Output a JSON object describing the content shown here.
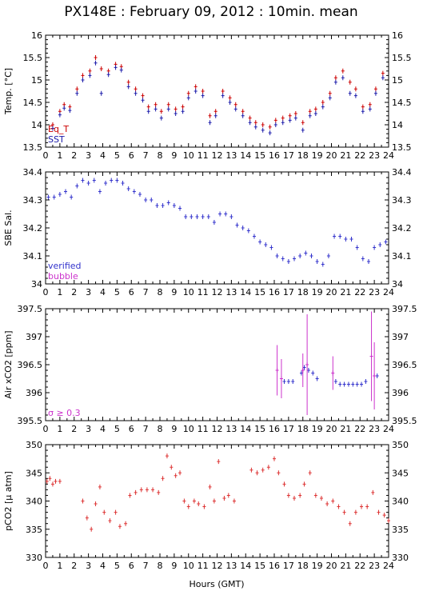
{
  "title": "PX148E : February 09, 2012 : 10min. mean",
  "xlabel": "Hours (GMT)",
  "colors": {
    "eq_t": "#cc0000",
    "sst": "#1a1aaa",
    "verified": "#3333cc",
    "bubble": "#cc33cc",
    "pco2": "#dd3333"
  },
  "chart_data": [
    {
      "type": "scatter",
      "ylabel": "Temp. [°C]",
      "xlim": [
        0,
        24
      ],
      "ylim": [
        13.5,
        16
      ],
      "yticks": [
        13.5,
        14,
        14.5,
        15,
        15.5,
        16
      ],
      "ytick_labels": [
        "13.5",
        "14",
        "14.5",
        "15",
        "15.5",
        "16"
      ],
      "xticks": [
        0,
        1,
        2,
        3,
        4,
        5,
        6,
        7,
        8,
        9,
        10,
        11,
        12,
        13,
        14,
        15,
        16,
        17,
        18,
        19,
        20,
        21,
        22,
        23,
        24
      ],
      "legend": [
        "Eq_T",
        "SST"
      ],
      "legend_placement": "bottom-left",
      "series": [
        {
          "name": "Eq_T",
          "x": [
            0.5,
            1.0,
            1.3,
            1.7,
            2.2,
            2.6,
            3.1,
            3.5,
            3.9,
            4.4,
            4.9,
            5.3,
            5.8,
            6.3,
            6.8,
            7.2,
            7.7,
            8.1,
            8.6,
            9.1,
            9.6,
            10.0,
            10.5,
            11.0,
            11.5,
            11.9,
            12.4,
            12.9,
            13.3,
            13.8,
            14.3,
            14.7,
            15.2,
            15.7,
            16.1,
            16.6,
            17.1,
            17.5,
            18.0,
            18.5,
            18.9,
            19.4,
            19.9,
            20.3,
            20.8,
            21.3,
            21.7,
            22.2,
            22.7,
            23.1,
            23.6
          ],
          "y": [
            14.0,
            14.3,
            14.45,
            14.4,
            14.8,
            15.1,
            15.2,
            15.5,
            15.25,
            15.2,
            15.35,
            15.3,
            14.95,
            14.8,
            14.65,
            14.4,
            14.45,
            14.3,
            14.45,
            14.35,
            14.4,
            14.7,
            14.85,
            14.75,
            14.2,
            14.3,
            14.75,
            14.6,
            14.45,
            14.3,
            14.15,
            14.05,
            14.0,
            13.95,
            14.1,
            14.15,
            14.2,
            14.25,
            14.05,
            14.3,
            14.35,
            14.5,
            14.7,
            15.05,
            15.2,
            14.95,
            14.8,
            14.4,
            14.45,
            14.8,
            15.15
          ]
        },
        {
          "name": "SST",
          "x": [
            0.5,
            1.0,
            1.3,
            1.7,
            2.2,
            2.6,
            3.1,
            3.5,
            3.9,
            4.4,
            4.9,
            5.3,
            5.8,
            6.3,
            6.8,
            7.2,
            7.7,
            8.1,
            8.6,
            9.1,
            9.6,
            10.0,
            10.5,
            11.0,
            11.5,
            11.9,
            12.4,
            12.9,
            13.3,
            13.8,
            14.3,
            14.7,
            15.2,
            15.7,
            16.1,
            16.6,
            17.1,
            17.5,
            18.0,
            18.5,
            18.9,
            19.4,
            19.9,
            20.3,
            20.8,
            21.3,
            21.7,
            22.2,
            22.7,
            23.1,
            23.6
          ],
          "y": [
            13.92,
            14.22,
            14.37,
            14.32,
            14.7,
            15.0,
            15.1,
            15.38,
            14.7,
            15.12,
            15.28,
            15.22,
            14.85,
            14.7,
            14.55,
            14.3,
            14.35,
            14.15,
            14.35,
            14.25,
            14.3,
            14.6,
            14.75,
            14.65,
            14.05,
            14.2,
            14.65,
            14.5,
            14.35,
            14.2,
            14.05,
            13.95,
            13.88,
            13.82,
            14.0,
            14.05,
            14.1,
            14.15,
            13.88,
            14.2,
            14.25,
            14.4,
            14.6,
            14.95,
            15.05,
            14.7,
            14.65,
            14.3,
            14.35,
            14.7,
            15.05
          ]
        }
      ]
    },
    {
      "type": "scatter",
      "ylabel": "SBE Sal.",
      "xlim": [
        0,
        24
      ],
      "ylim": [
        34,
        34.4
      ],
      "yticks": [
        34,
        34.1,
        34.2,
        34.3,
        34.4
      ],
      "ytick_labels": [
        "34",
        "34.1",
        "34.2",
        "34.3",
        "34.4"
      ],
      "xticks": [
        0,
        1,
        2,
        3,
        4,
        5,
        6,
        7,
        8,
        9,
        10,
        11,
        12,
        13,
        14,
        15,
        16,
        17,
        18,
        19,
        20,
        21,
        22,
        23,
        24
      ],
      "legend": [
        "verified",
        "bubble"
      ],
      "legend_placement": "bottom-left",
      "series": [
        {
          "name": "verified",
          "x": [
            0.2,
            0.6,
            1.0,
            1.4,
            1.8,
            2.2,
            2.6,
            3.0,
            3.4,
            3.8,
            4.2,
            4.6,
            5.0,
            5.4,
            5.8,
            6.2,
            6.6,
            7.0,
            7.4,
            7.8,
            8.2,
            8.6,
            9.0,
            9.4,
            9.8,
            10.2,
            10.6,
            11.0,
            11.4,
            11.8,
            12.2,
            12.6,
            13.0,
            13.4,
            13.8,
            14.2,
            14.6,
            15.0,
            15.4,
            15.8,
            16.2,
            16.6,
            17.0,
            17.4,
            17.8,
            18.2,
            18.6,
            19.0,
            19.4,
            19.8,
            20.2,
            20.6,
            21.0,
            21.4,
            21.8,
            22.2,
            22.6,
            23.0,
            23.4,
            23.8
          ],
          "y": [
            34.31,
            34.31,
            34.32,
            34.33,
            34.31,
            34.35,
            34.37,
            34.36,
            34.37,
            34.33,
            34.36,
            34.37,
            34.37,
            34.36,
            34.34,
            34.33,
            34.32,
            34.3,
            34.3,
            34.28,
            34.28,
            34.29,
            34.28,
            34.27,
            34.24,
            34.24,
            34.24,
            34.24,
            34.24,
            34.22,
            34.25,
            34.25,
            34.24,
            34.21,
            34.2,
            34.19,
            34.17,
            34.15,
            34.14,
            34.13,
            34.1,
            34.09,
            34.08,
            34.09,
            34.1,
            34.11,
            34.1,
            34.08,
            34.07,
            34.1,
            34.17,
            34.17,
            34.16,
            34.16,
            34.13,
            34.09,
            34.08,
            34.13,
            34.14,
            34.15
          ]
        }
      ]
    },
    {
      "type": "scatter",
      "ylabel": "Air xCO2 [ppm]",
      "xlim": [
        0,
        24
      ],
      "ylim": [
        395.5,
        397.5
      ],
      "yticks": [
        395.5,
        396,
        396.5,
        397,
        397.5
      ],
      "ytick_labels": [
        "395.5",
        "396",
        "396.5",
        "397",
        "397.5"
      ],
      "xticks": [
        0,
        1,
        2,
        3,
        4,
        5,
        6,
        7,
        8,
        9,
        10,
        11,
        12,
        13,
        14,
        15,
        16,
        17,
        18,
        19,
        20,
        21,
        22,
        23,
        24
      ],
      "legend": [
        "σ ≥ 0.3"
      ],
      "legend_placement": "bottom-left",
      "series": [
        {
          "name": "verified",
          "x": [
            16.7,
            17.0,
            17.3,
            17.9,
            18.1,
            18.4,
            18.7,
            19.0,
            20.3,
            20.6,
            20.9,
            21.2,
            21.5,
            21.8,
            22.1,
            22.4,
            23.2
          ],
          "y": [
            396.2,
            396.2,
            396.2,
            396.35,
            396.45,
            396.4,
            396.35,
            396.25,
            396.2,
            396.15,
            396.15,
            396.15,
            396.15,
            396.15,
            396.15,
            396.2,
            396.3
          ]
        },
        {
          "name": "σ ≥ 0.3",
          "x": [
            16.2,
            16.5,
            18.0,
            18.3,
            20.1,
            22.8,
            23.0
          ],
          "y": [
            396.4,
            396.25,
            396.4,
            396.5,
            396.35,
            396.65,
            396.3
          ],
          "err": [
            0.45,
            0.35,
            0.3,
            0.9,
            0.3,
            0.8,
            0.6
          ]
        }
      ]
    },
    {
      "type": "scatter",
      "ylabel": "pCO2 [μ atm]",
      "xlim": [
        0,
        24
      ],
      "ylim": [
        330,
        350
      ],
      "yticks": [
        330,
        335,
        340,
        345,
        350
      ],
      "ytick_labels": [
        "330",
        "335",
        "340",
        "345",
        "350"
      ],
      "xticks": [
        0,
        1,
        2,
        3,
        4,
        5,
        6,
        7,
        8,
        9,
        10,
        11,
        12,
        13,
        14,
        15,
        16,
        17,
        18,
        19,
        20,
        21,
        22,
        23,
        24
      ],
      "series": [
        {
          "name": "pCO2",
          "x": [
            0.1,
            0.3,
            0.5,
            0.7,
            1.0,
            2.6,
            2.9,
            3.2,
            3.5,
            3.8,
            4.1,
            4.5,
            4.9,
            5.2,
            5.6,
            5.9,
            6.3,
            6.7,
            7.1,
            7.5,
            7.9,
            8.2,
            8.5,
            8.8,
            9.1,
            9.4,
            9.7,
            10.0,
            10.4,
            10.7,
            11.1,
            11.5,
            11.8,
            12.1,
            12.5,
            12.8,
            13.2,
            14.4,
            14.8,
            15.2,
            15.6,
            16.0,
            16.3,
            16.7,
            17.0,
            17.4,
            17.8,
            18.1,
            18.5,
            18.9,
            19.3,
            19.7,
            20.1,
            20.5,
            20.9,
            21.3,
            21.7,
            22.1,
            22.5,
            22.9,
            23.3,
            23.7,
            24.0
          ],
          "y": [
            343.5,
            344,
            343,
            343.5,
            343.5,
            340,
            337,
            335,
            339.5,
            342.5,
            338,
            336.5,
            338,
            335.5,
            336,
            341,
            341.5,
            342,
            342,
            342,
            341.5,
            344,
            348,
            346,
            344.5,
            345,
            340,
            339,
            340,
            339.5,
            339,
            342.5,
            340,
            347,
            340.5,
            341,
            340,
            345.5,
            345,
            345.5,
            346,
            347.5,
            345,
            343,
            341,
            340.5,
            341,
            343,
            345,
            341,
            340.5,
            339.5,
            340,
            339,
            338,
            336,
            338,
            339,
            339,
            341.5,
            338,
            337.5,
            336.5
          ]
        }
      ]
    }
  ]
}
